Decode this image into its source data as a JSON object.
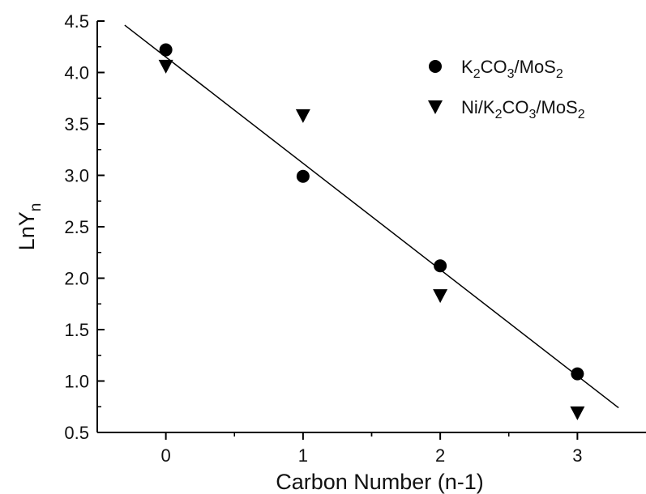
{
  "chart_data": {
    "type": "scatter",
    "title": "",
    "xlabel": "Carbon Number (n-1)",
    "ylabel": {
      "main": "LnY",
      "sub": "n"
    },
    "xlim": [
      -0.5,
      3.5
    ],
    "ylim": [
      0.5,
      4.5
    ],
    "x_ticks": [
      0,
      1,
      2,
      3
    ],
    "x_tick_labels": [
      "0",
      "1",
      "2",
      "3"
    ],
    "y_ticks": [
      0.5,
      1.0,
      1.5,
      2.0,
      2.5,
      3.0,
      3.5,
      4.0,
      4.5
    ],
    "y_tick_labels": [
      "0.5",
      "1.0",
      "1.5",
      "2.0",
      "2.5",
      "3.0",
      "3.5",
      "4.0",
      "4.5"
    ],
    "grid": false,
    "legend_position": "top-right",
    "series": [
      {
        "name": "K2CO3/MoS2",
        "marker": "circle",
        "color": "#000000",
        "legend_parts": [
          {
            "t": "K",
            "s": false
          },
          {
            "t": "2",
            "s": true
          },
          {
            "t": "CO",
            "s": false
          },
          {
            "t": "3",
            "s": true
          },
          {
            "t": "/MoS",
            "s": false
          },
          {
            "t": "2",
            "s": true
          }
        ],
        "x": [
          0,
          1,
          2,
          3
        ],
        "y": [
          4.22,
          2.99,
          2.12,
          1.07
        ]
      },
      {
        "name": "Ni/K2CO3/MoS2",
        "marker": "triangle-down",
        "color": "#000000",
        "legend_parts": [
          {
            "t": "Ni/K",
            "s": false
          },
          {
            "t": "2",
            "s": true
          },
          {
            "t": "CO",
            "s": false
          },
          {
            "t": "3",
            "s": true
          },
          {
            "t": "/MoS",
            "s": false
          },
          {
            "t": "2",
            "s": true
          }
        ],
        "x": [
          0,
          1,
          2,
          3
        ],
        "y": [
          4.06,
          3.58,
          1.83,
          0.69
        ]
      }
    ],
    "fit_line": {
      "x": [
        -0.3,
        3.3
      ],
      "y": [
        4.46,
        0.74
      ]
    }
  }
}
